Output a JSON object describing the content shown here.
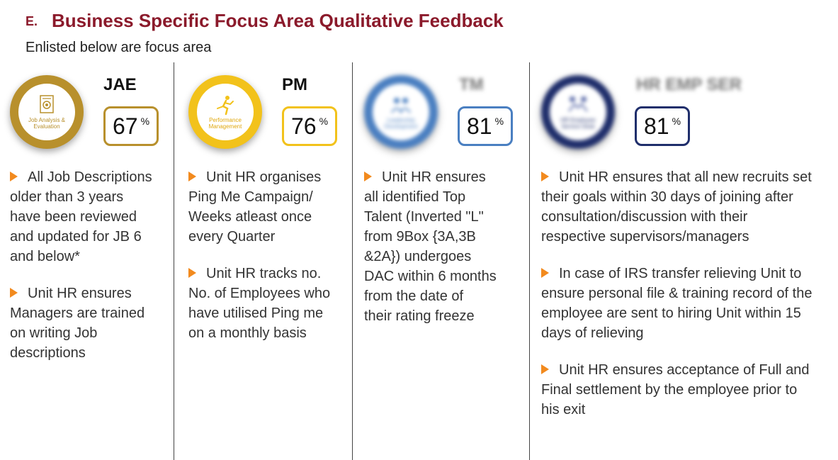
{
  "header": {
    "letter": "E.",
    "title": "Business Specific Focus Area Qualitative Feedback",
    "subtitle": "Enlisted below are focus area",
    "title_color": "#8b1a2b"
  },
  "bullet_arrow_color": "#f28a1e",
  "columns": [
    {
      "code": "JAE",
      "badge_label": "Job Analysis & Evaluation",
      "badge_icon": "document-gear-icon",
      "percent": "67",
      "percent_unit": "%",
      "accent": "#b8902c",
      "bullets": [
        [
          "All Job Descriptions",
          "older than 3 years",
          "have been reviewed",
          "and updated for JB 6",
          "and below*"
        ],
        [
          "Unit HR ensures",
          "Managers are trained",
          "on writing Job",
          "descriptions"
        ]
      ]
    },
    {
      "code": "PM",
      "badge_label": "Performance Management",
      "badge_icon": "runner-icon",
      "percent": "76",
      "percent_unit": "%",
      "accent": "#f2c21b",
      "bullets": [
        [
          "Unit HR organises",
          "Ping Me Campaign/",
          "Weeks atleast once",
          "every Quarter"
        ],
        [
          "Unit HR tracks no.",
          "No. of Employees who",
          "have utilised Ping me",
          "on a monthly basis"
        ]
      ]
    },
    {
      "code": "TM",
      "badge_label": "Leadership Development",
      "badge_icon": "people-icon",
      "percent": "81",
      "percent_unit": "%",
      "accent": "#4a7fc1",
      "bullets": [
        [
          "Unit HR ensures",
          "all identified Top",
          "Talent (Inverted \"L\"",
          "from 9Box {3A,3B",
          "&2A}) undergoes",
          "DAC within 6 months",
          "from the date of",
          "their rating freeze"
        ]
      ]
    },
    {
      "code": "HR EMP SER",
      "badge_label": "HR Employee Service Desk",
      "badge_icon": "handshake-icon",
      "percent": "81",
      "percent_unit": "%",
      "accent": "#1f2e6b",
      "bullets": [
        [
          "Unit HR ensures that all new recruits set",
          "their goals within 30 days of joining after",
          "consultation/discussion with their",
          "respective supervisors/managers"
        ],
        [
          "In case of IRS transfer relieving Unit to",
          "ensure personal file & training record of the",
          "employee are sent to hiring Unit within 15",
          "days of relieving"
        ],
        [
          "Unit HR ensures acceptance of Full and",
          "Final settlement by the employee prior to",
          "his exit"
        ]
      ]
    }
  ]
}
